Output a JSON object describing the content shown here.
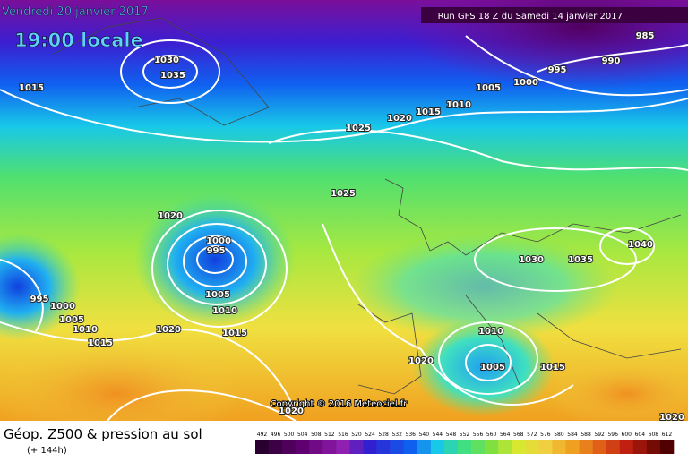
{
  "header": {
    "date": "Vendredi 20 janvier 2017",
    "time": "19:00 locale",
    "run": "Run GFS 18 Z du Samedi 14 janvier 2017"
  },
  "copyright": "Copyright © 2016 Meteociel.fr",
  "footer": {
    "title": "Géop. Z500 & pression au sol",
    "lead": "(+ 144h)"
  },
  "isobar_labels": [
    "1030",
    "1035",
    "1015",
    "985",
    "995",
    "990",
    "1005",
    "1000",
    "1010",
    "1015",
    "1020",
    "1025",
    "1025",
    "1020",
    "1000",
    "995",
    "1005",
    "1010",
    "1015",
    "995",
    "1000",
    "1005",
    "1010",
    "1015",
    "1020",
    "1030",
    "1035",
    "1040",
    "1010",
    "1005",
    "1020",
    "1015",
    "1020",
    "1020"
  ],
  "scale": [
    "492",
    "496",
    "500",
    "504",
    "508",
    "512",
    "516",
    "520",
    "524",
    "528",
    "532",
    "536",
    "540",
    "544",
    "548",
    "552",
    "556",
    "560",
    "564",
    "568",
    "572",
    "576",
    "580",
    "584",
    "588",
    "592",
    "596",
    "600",
    "604",
    "608",
    "612"
  ]
}
